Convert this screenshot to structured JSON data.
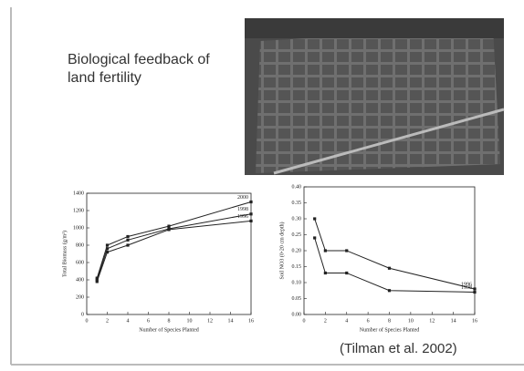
{
  "slide": {
    "title": "Biological feedback of land fertility",
    "citation": "(Tilman et al. 2002)"
  },
  "chart_data": [
    {
      "type": "line",
      "xlabel": "Number of Species Planted",
      "ylabel": "Total Biomass (g/m²)",
      "x": [
        1,
        2,
        4,
        8,
        16
      ],
      "xlim": [
        0,
        16
      ],
      "xticks": [
        0,
        2,
        4,
        6,
        8,
        10,
        12,
        14,
        16
      ],
      "ylim": [
        0,
        1400
      ],
      "yticks": [
        0,
        200,
        400,
        600,
        800,
        1000,
        1200,
        1400
      ],
      "series": [
        {
          "name": "2000",
          "color": "#222222",
          "values": [
            420,
            800,
            900,
            1020,
            1300
          ]
        },
        {
          "name": "1998",
          "color": "#222222",
          "values": [
            400,
            760,
            860,
            990,
            1160
          ]
        },
        {
          "name": "1996",
          "color": "#222222",
          "values": [
            380,
            720,
            800,
            980,
            1080
          ]
        }
      ]
    },
    {
      "type": "line",
      "xlabel": "Number of Species Planted",
      "ylabel": "Soil NO3 (0-20 cm depth)",
      "x": [
        1,
        2,
        4,
        8,
        16
      ],
      "xlim": [
        0,
        16
      ],
      "xticks": [
        0,
        2,
        4,
        6,
        8,
        10,
        12,
        14,
        16
      ],
      "ylim": [
        0,
        0.4
      ],
      "yticks": [
        {
          "value": 0,
          "label": "0.00"
        },
        {
          "value": 0.05,
          "label": "0.05"
        },
        {
          "value": 0.1,
          "label": "0.10"
        },
        {
          "value": 0.15,
          "label": "0.15"
        },
        {
          "value": 0.2,
          "label": "0.20"
        },
        {
          "value": 0.25,
          "label": "0.25"
        },
        {
          "value": 0.3,
          "label": "0.30"
        },
        {
          "value": 0.35,
          "label": "0.35"
        },
        {
          "value": 0.4,
          "label": "0.40"
        }
      ],
      "series": [
        {
          "name": "1996",
          "color": "#222222",
          "values": [
            0.3,
            0.2,
            0.2,
            0.145,
            0.08
          ]
        },
        {
          "name": "1998",
          "color": "#222222",
          "values": [
            0.24,
            0.13,
            0.13,
            0.075,
            0.07
          ]
        }
      ]
    }
  ]
}
